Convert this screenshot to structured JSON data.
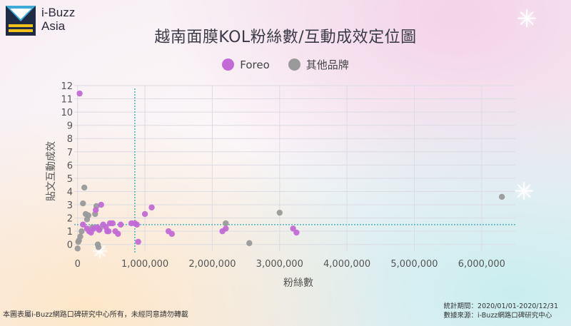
{
  "brand": {
    "line1": "i-Buzz",
    "line2": "Asia",
    "colors": {
      "blue": "#3fa9d8",
      "yellow": "#f3c21b",
      "navy": "#1f2b44"
    }
  },
  "footer": {
    "copyright": "本圖表屬i-Buzz網路口碑研究中心所有，未經同意請勿轉載",
    "period": "統計期間：2020/01/01-2020/12/31",
    "source": "數據來源：i-Buzz網路口碑研究中心"
  },
  "chart_data": {
    "type": "scatter",
    "title": "越南面膜KOL粉絲數/互動成效定位圖",
    "xlabel": "粉絲數",
    "ylabel": "貼文互動成效",
    "xlim": [
      -50000,
      6500000
    ],
    "ylim": [
      -0.5,
      12
    ],
    "x_ticks": [
      0,
      1000000,
      2000000,
      3000000,
      4000000,
      5000000,
      6000000
    ],
    "x_tick_labels": [
      "0",
      "1,000,000",
      "2,000,000",
      "3,000,000",
      "4,000,000",
      "5,000,000",
      "6,000,000"
    ],
    "y_ticks": [
      0,
      1,
      2,
      3,
      4,
      5,
      6,
      7,
      8,
      9,
      10,
      11,
      12
    ],
    "y_tick_labels": [
      "0",
      "1",
      "2",
      "3",
      "4",
      "5",
      "6",
      "7",
      "8",
      "9",
      "10",
      "11",
      "12"
    ],
    "reference_lines": {
      "x": 850000,
      "y": 1.5
    },
    "grid": true,
    "legend_position": "top-center",
    "series": [
      {
        "name": "Foreo",
        "color": "#c26ad6",
        "points": [
          [
            30000,
            11.4
          ],
          [
            80000,
            1.5
          ],
          [
            140000,
            1.2
          ],
          [
            170000,
            1.0
          ],
          [
            200000,
            0.9
          ],
          [
            240000,
            1.2
          ],
          [
            270000,
            2.6
          ],
          [
            290000,
            1.3
          ],
          [
            320000,
            1.1
          ],
          [
            350000,
            3.0
          ],
          [
            380000,
            1.5
          ],
          [
            420000,
            1.3
          ],
          [
            440000,
            1.0
          ],
          [
            460000,
            1.0
          ],
          [
            480000,
            1.6
          ],
          [
            520000,
            1.6
          ],
          [
            560000,
            1.0
          ],
          [
            600000,
            0.8
          ],
          [
            640000,
            1.5
          ],
          [
            800000,
            1.6
          ],
          [
            850000,
            1.6
          ],
          [
            880000,
            1.5
          ],
          [
            900000,
            0.2
          ],
          [
            1000000,
            2.3
          ],
          [
            1100000,
            2.8
          ],
          [
            1350000,
            1.0
          ],
          [
            1400000,
            0.8
          ],
          [
            2150000,
            1.0
          ],
          [
            2200000,
            1.2
          ],
          [
            3200000,
            1.2
          ],
          [
            3250000,
            0.9
          ]
        ]
      },
      {
        "name": "其他品牌",
        "color": "#9a9a9a",
        "points": [
          [
            0,
            -0.3
          ],
          [
            10000,
            0.2
          ],
          [
            20000,
            0.3
          ],
          [
            40000,
            0.6
          ],
          [
            60000,
            1.0
          ],
          [
            80000,
            3.1
          ],
          [
            100000,
            4.3
          ],
          [
            120000,
            2.3
          ],
          [
            140000,
            1.9
          ],
          [
            160000,
            2.2
          ],
          [
            220000,
            1.3
          ],
          [
            260000,
            2.3
          ],
          [
            280000,
            2.9
          ],
          [
            300000,
            0.0
          ],
          [
            310000,
            -0.2
          ],
          [
            330000,
            1.2
          ],
          [
            2200000,
            1.6
          ],
          [
            2550000,
            0.1
          ],
          [
            3000000,
            2.4
          ],
          [
            6300000,
            3.6
          ]
        ]
      }
    ]
  }
}
